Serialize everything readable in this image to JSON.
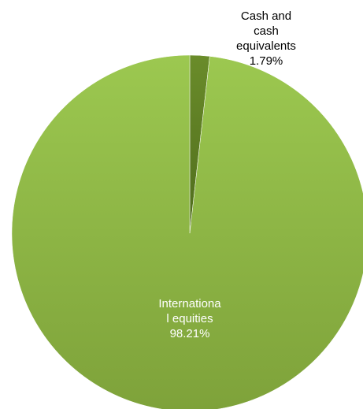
{
  "chart_data": {
    "type": "pie",
    "slices": [
      {
        "name": "Cash and cash equivalents",
        "label_lines": [
          "Cash and",
          "cash",
          "equivalents",
          "1.79%"
        ],
        "value": 1.79,
        "color": "#5a7a22",
        "label_color": "#000000"
      },
      {
        "name": "International equities",
        "label_lines": [
          "Internationa",
          "l equities",
          "98.21%"
        ],
        "value": 98.21,
        "color": "#92bd46",
        "label_color": "#ffffff"
      }
    ],
    "start_angle_deg": 0,
    "direction": "clockwise"
  }
}
